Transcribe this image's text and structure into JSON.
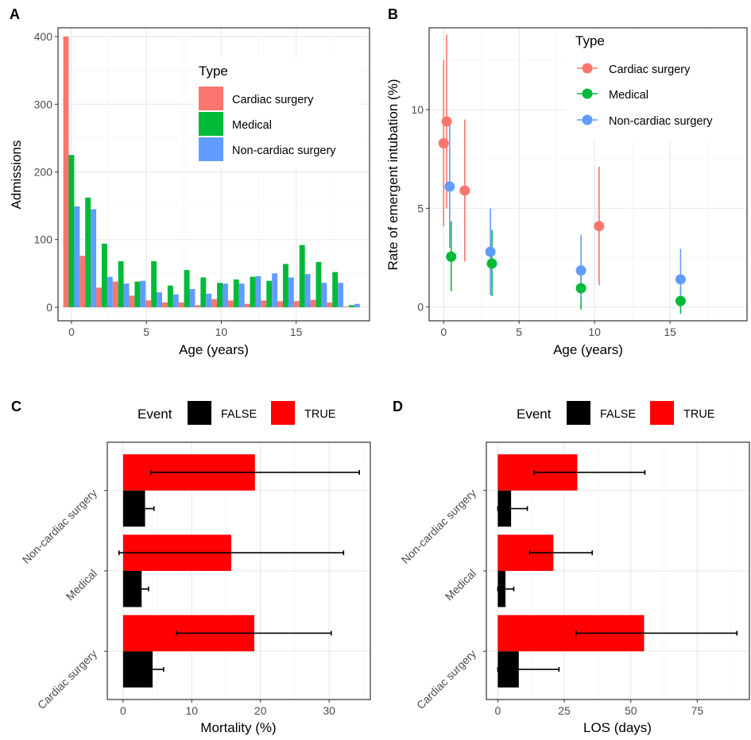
{
  "colors": {
    "cardiac": "#F8766D",
    "medical": "#00BA38",
    "noncardiac": "#619CFF",
    "event_false": "#000000",
    "event_true": "#FF0000"
  },
  "chart_data": [
    {
      "panel": "A",
      "type": "bar",
      "xlabel": "Age (years)",
      "ylabel": "Admissions",
      "xlim": [
        -0.9,
        19.9
      ],
      "ylim": [
        -20,
        413
      ],
      "xticks": [
        0,
        5,
        10,
        15
      ],
      "yticks": [
        0,
        100,
        200,
        300,
        400
      ],
      "grid": true,
      "legend": {
        "title": "Type",
        "placement": "top-right"
      },
      "x": [
        0,
        1.1,
        2.2,
        3.3,
        4.4,
        5.5,
        6.6,
        7.7,
        8.8,
        9.9,
        11.0,
        12.1,
        13.2,
        14.3,
        15.4,
        16.5,
        17.6,
        18.7
      ],
      "series": [
        {
          "name": "Cardiac surgery",
          "values": [
            400,
            76,
            29,
            38,
            17,
            10,
            7,
            7,
            3,
            12,
            10,
            5,
            10,
            9,
            9,
            11,
            7,
            1
          ]
        },
        {
          "name": "Medical",
          "values": [
            225,
            162,
            94,
            68,
            38,
            68,
            32,
            55,
            44,
            36,
            41,
            45,
            39,
            64,
            92,
            67,
            52,
            3
          ]
        },
        {
          "name": "Non-cardiac surgery",
          "values": [
            149,
            145,
            45,
            35,
            39,
            22,
            19,
            27,
            20,
            35,
            35,
            46,
            50,
            44,
            49,
            36,
            36,
            5
          ]
        }
      ]
    },
    {
      "panel": "B",
      "type": "scatter",
      "xlabel": "Age (years)",
      "ylabel": "Rate of emergent intubation (%)",
      "xlim": [
        -0.96,
        20.1
      ],
      "ylim": [
        -0.7,
        14.15
      ],
      "xticks": [
        0,
        5,
        10,
        15
      ],
      "yticks": [
        0,
        5,
        10
      ],
      "grid": true,
      "legend": {
        "title": "Type",
        "placement": "top-right"
      },
      "series": [
        {
          "name": "Cardiac surgery",
          "points": [
            {
              "x": 0.0,
              "y": 8.3,
              "lo": 4.1,
              "hi": 12.5
            },
            {
              "x": 0.2,
              "y": 9.4,
              "lo": 5.0,
              "hi": 13.8
            },
            {
              "x": 1.4,
              "y": 5.9,
              "lo": 2.3,
              "hi": 9.5
            },
            {
              "x": 10.3,
              "y": 4.1,
              "lo": 1.1,
              "hi": 7.1
            }
          ]
        },
        {
          "name": "Medical",
          "points": [
            {
              "x": 0.5,
              "y": 2.55,
              "lo": 0.8,
              "hi": 4.35
            },
            {
              "x": 3.2,
              "y": 2.2,
              "lo": 0.55,
              "hi": 3.9
            },
            {
              "x": 9.1,
              "y": 0.95,
              "lo": -0.13,
              "hi": 2.05
            },
            {
              "x": 15.7,
              "y": 0.3,
              "lo": -0.35,
              "hi": 0.97
            }
          ]
        },
        {
          "name": "Non-cardiac surgery",
          "points": [
            {
              "x": 0.4,
              "y": 6.1,
              "lo": 3.0,
              "hi": 9.35
            },
            {
              "x": 3.1,
              "y": 2.8,
              "lo": 0.6,
              "hi": 5.0
            },
            {
              "x": 9.1,
              "y": 1.85,
              "lo": 0.4,
              "hi": 3.66
            },
            {
              "x": 15.7,
              "y": 1.4,
              "lo": 0.1,
              "hi": 2.95
            }
          ]
        }
      ]
    },
    {
      "panel": "C",
      "type": "bar",
      "orientation": "horizontal",
      "xlabel": "Mortality (%)",
      "ylabel": "",
      "xlim": [
        -2.3,
        36
      ],
      "xticks": [
        0,
        10,
        20,
        30
      ],
      "grid": true,
      "legend": {
        "title": "Event",
        "placement": "top"
      },
      "categories": [
        "Cardiac surgery",
        "Medical",
        "Non-cardiac surgery"
      ],
      "series": [
        {
          "name": "FALSE",
          "values": [
            4.3,
            2.7,
            3.2
          ],
          "lo": [
            2.7,
            1.7,
            1.9
          ],
          "hi": [
            5.9,
            3.7,
            4.5
          ]
        },
        {
          "name": "TRUE",
          "values": [
            19.1,
            15.75,
            19.2
          ],
          "lo": [
            7.8,
            -0.6,
            4.05
          ],
          "hi": [
            30.3,
            32.1,
            34.4
          ]
        }
      ]
    },
    {
      "panel": "D",
      "type": "bar",
      "orientation": "horizontal",
      "xlabel": "LOS (days)",
      "ylabel": "",
      "xlim": [
        -4.3,
        94.6
      ],
      "xticks": [
        0,
        25,
        50,
        75
      ],
      "grid": true,
      "legend": {
        "title": "Event",
        "placement": "top"
      },
      "categories": [
        "Cardiac surgery",
        "Medical",
        "Non-cardiac surgery"
      ],
      "series": [
        {
          "name": "FALSE",
          "values": [
            7.9,
            2.9,
            5.0
          ],
          "lo": [
            0,
            0,
            0
          ],
          "hi": [
            23,
            6,
            11.1
          ]
        },
        {
          "name": "TRUE",
          "values": [
            55,
            20.9,
            29.9
          ],
          "lo": [
            29.5,
            12,
            13.7
          ],
          "hi": [
            89.9,
            35.5,
            55.3
          ]
        }
      ]
    }
  ]
}
